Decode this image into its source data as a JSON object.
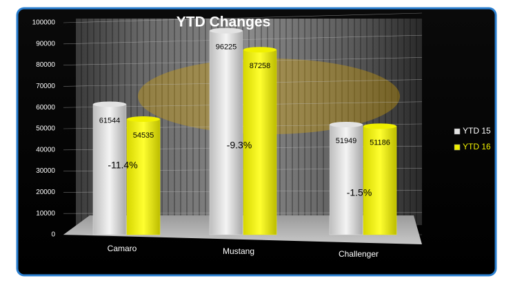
{
  "chart_data": {
    "type": "bar",
    "title": "YTD Changes",
    "categories": [
      "Camaro",
      "Mustang",
      "Challenger"
    ],
    "series": [
      {
        "name": "YTD 15",
        "color": "#e2e2e2",
        "values": [
          61544,
          96225,
          51949
        ]
      },
      {
        "name": "YTD 16",
        "color": "#f0f000",
        "values": [
          54535,
          87258,
          51186
        ]
      }
    ],
    "annotations": [
      "-11.4%",
      "-9.3%",
      "-1.5%"
    ],
    "ylim": [
      0,
      100000
    ],
    "yticks": [
      0,
      10000,
      20000,
      30000,
      40000,
      50000,
      60000,
      70000,
      80000,
      90000,
      100000
    ],
    "grid": true,
    "legend": "right"
  }
}
